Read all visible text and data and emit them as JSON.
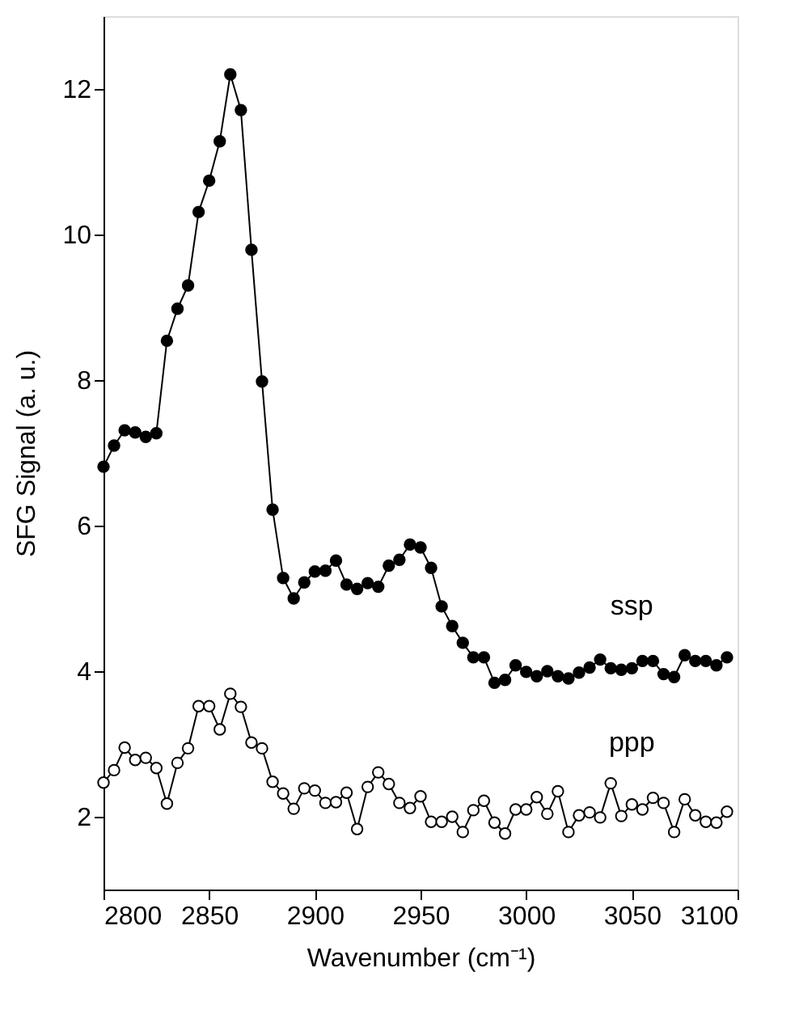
{
  "chart_data": {
    "type": "line",
    "xlabel": "Wavenumber (cm⁻¹)",
    "ylabel": "SFG Signal (a. u.)",
    "x": [
      2800,
      2805,
      2810,
      2815,
      2820,
      2825,
      2830,
      2835,
      2840,
      2845,
      2850,
      2855,
      2860,
      2865,
      2870,
      2875,
      2880,
      2885,
      2890,
      2895,
      2900,
      2905,
      2910,
      2915,
      2920,
      2925,
      2930,
      2935,
      2940,
      2945,
      2950,
      2955,
      2960,
      2965,
      2970,
      2975,
      2980,
      2985,
      2990,
      2995,
      3000,
      3005,
      3010,
      3015,
      3020,
      3025,
      3030,
      3035,
      3040,
      3045,
      3050,
      3055,
      3060,
      3065,
      3070,
      3075,
      3080,
      3085,
      3090,
      3095
    ],
    "series": [
      {
        "name": "ssp",
        "color": "#000000",
        "values": [
          6.81,
          7.1,
          7.31,
          7.28,
          7.22,
          7.27,
          8.54,
          8.98,
          9.3,
          10.31,
          10.74,
          11.28,
          12.2,
          11.71,
          9.79,
          7.98,
          6.22,
          5.28,
          5.0,
          5.22,
          5.37,
          5.38,
          5.52,
          5.19,
          5.13,
          5.21,
          5.16,
          5.45,
          5.53,
          5.74,
          5.7,
          5.42,
          4.89,
          4.62,
          4.39,
          4.19,
          4.19,
          3.84,
          3.88,
          4.08,
          3.99,
          3.93,
          4.0,
          3.93,
          3.9,
          3.98,
          4.05,
          4.16,
          4.04,
          4.02,
          4.04,
          4.14,
          4.14,
          3.96,
          3.92,
          4.22,
          4.14,
          4.14,
          4.08,
          4.19
        ]
      },
      {
        "name": "ppp",
        "color": "#000000",
        "values": [
          2.47,
          2.64,
          2.95,
          2.78,
          2.81,
          2.67,
          2.18,
          2.74,
          2.94,
          3.52,
          3.52,
          3.2,
          3.69,
          3.51,
          3.02,
          2.94,
          2.48,
          2.32,
          2.11,
          2.39,
          2.36,
          2.19,
          2.2,
          2.33,
          1.83,
          2.41,
          2.61,
          2.45,
          2.19,
          2.12,
          2.28,
          1.93,
          1.93,
          2.0,
          1.79,
          2.09,
          2.22,
          1.92,
          1.77,
          2.1,
          2.1,
          2.27,
          2.04,
          2.35,
          1.79,
          2.02,
          2.06,
          1.99,
          2.46,
          2.01,
          2.17,
          2.1,
          2.26,
          2.19,
          1.79,
          2.24,
          2.02,
          1.93,
          1.92,
          2.07
        ]
      }
    ],
    "xlim": [
      2800,
      3100
    ],
    "xticks": [
      2800,
      2850,
      2900,
      2950,
      3000,
      3050,
      3100
    ],
    "ylim": [
      1,
      13
    ],
    "yticks": [
      2,
      4,
      6,
      8,
      10,
      12
    ],
    "grid": false,
    "marker": "circle",
    "line_style": "solid"
  }
}
